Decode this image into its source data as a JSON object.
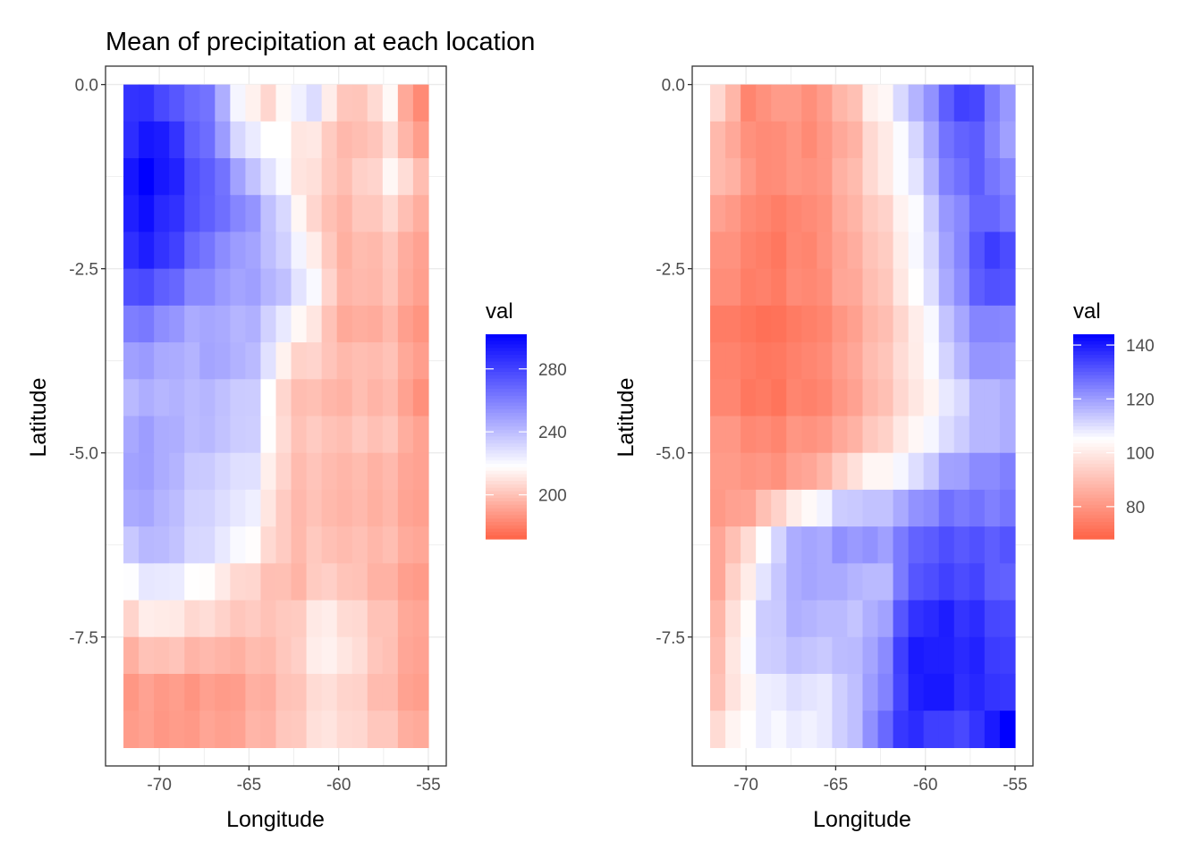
{
  "chart_data": [
    {
      "type": "heatmap",
      "title": "Mean of precipitation at each location",
      "xlabel": "Longitude",
      "ylabel": "Latitude",
      "x_ticks": [
        -70,
        -65,
        -60,
        -55
      ],
      "x_tick_labels": [
        "-70",
        "-65",
        "-60",
        "-55"
      ],
      "y_ticks": [
        0.0,
        -2.5,
        -5.0,
        -7.5
      ],
      "y_tick_labels": [
        "0.0",
        "-2.5",
        "-5.0",
        "-7.5"
      ],
      "xlim": [
        -73.0,
        -54.0
      ],
      "ylim": [
        -9.25,
        0.25
      ],
      "grid": true,
      "legend": {
        "title": "val",
        "placement": "right",
        "min": 172,
        "max": 302,
        "mid": 218,
        "ticks": [
          200,
          240,
          280
        ],
        "tick_labels": [
          "200",
          "240",
          "280"
        ],
        "colors": {
          "low": "#ff6347",
          "mid": "#ffffff",
          "high": "#0000ff"
        }
      },
      "cells": {
        "x_start": -72.0,
        "x_end": -55.0,
        "cols": 20,
        "y_start": 0.0,
        "y_end": -9.0,
        "rows": 18,
        "col_pattern": [
          -0.2,
          0.3,
          -0.1,
          0.1,
          -0.3,
          0.2,
          0.0,
          -0.2,
          0.3,
          -0.1,
          0.2,
          -0.3,
          0.1,
          0.0,
          -0.2,
          0.3,
          -0.1,
          0.2,
          -0.3,
          0.1
        ],
        "row_pattern": [
          0.1,
          -0.2,
          0.3,
          -0.1,
          0.0,
          0.2,
          -0.3,
          0.1,
          -0.2,
          0.3,
          0.0,
          -0.1,
          0.2,
          -0.3,
          0.1,
          0.0,
          -0.2,
          0.3
        ],
        "noise_amp": 7,
        "values": [
          [
            286,
            283,
            278,
            272,
            268,
            262,
            244,
            222,
            211,
            206,
            214,
            224,
            228,
            212,
            202,
            198,
            207,
            214,
            194,
            182
          ],
          [
            290,
            294,
            295,
            286,
            274,
            266,
            252,
            234,
            224,
            220,
            218,
            214,
            212,
            204,
            200,
            198,
            203,
            208,
            200,
            190
          ],
          [
            294,
            298,
            293,
            288,
            276,
            268,
            262,
            248,
            234,
            226,
            216,
            210,
            206,
            200,
            198,
            200,
            204,
            212,
            208,
            196
          ],
          [
            294,
            296,
            290,
            286,
            278,
            270,
            266,
            260,
            252,
            240,
            230,
            218,
            206,
            200,
            198,
            200,
            203,
            206,
            202,
            194
          ],
          [
            288,
            290,
            286,
            280,
            270,
            262,
            256,
            252,
            246,
            240,
            232,
            224,
            212,
            202,
            196,
            196,
            198,
            200,
            196,
            190
          ],
          [
            276,
            274,
            270,
            266,
            258,
            254,
            250,
            248,
            246,
            242,
            236,
            228,
            218,
            204,
            196,
            194,
            196,
            198,
            194,
            188
          ],
          [
            264,
            262,
            258,
            254,
            250,
            248,
            248,
            246,
            244,
            236,
            226,
            220,
            212,
            202,
            196,
            194,
            196,
            198,
            194,
            188
          ],
          [
            250,
            248,
            246,
            244,
            244,
            246,
            246,
            244,
            238,
            228,
            212,
            206,
            204,
            200,
            198,
            196,
            198,
            198,
            194,
            188
          ],
          [
            244,
            244,
            244,
            244,
            244,
            242,
            240,
            238,
            234,
            220,
            206,
            202,
            200,
            198,
            198,
            198,
            198,
            198,
            194,
            186
          ],
          [
            246,
            246,
            244,
            242,
            240,
            238,
            236,
            234,
            230,
            216,
            204,
            200,
            200,
            198,
            198,
            198,
            198,
            198,
            194,
            188
          ],
          [
            250,
            248,
            246,
            242,
            238,
            234,
            232,
            230,
            226,
            214,
            204,
            200,
            200,
            198,
            198,
            196,
            196,
            196,
            194,
            190
          ],
          [
            248,
            246,
            244,
            240,
            236,
            232,
            230,
            228,
            222,
            212,
            202,
            200,
            200,
            198,
            198,
            196,
            196,
            196,
            194,
            190
          ],
          [
            236,
            238,
            240,
            236,
            232,
            228,
            224,
            220,
            214,
            206,
            200,
            198,
            200,
            198,
            198,
            196,
            196,
            196,
            194,
            190
          ],
          [
            222,
            226,
            228,
            226,
            222,
            218,
            214,
            210,
            206,
            202,
            200,
            200,
            204,
            206,
            204,
            200,
            198,
            196,
            194,
            190
          ],
          [
            206,
            210,
            212,
            210,
            208,
            206,
            204,
            202,
            200,
            200,
            200,
            204,
            210,
            212,
            208,
            204,
            200,
            198,
            194,
            190
          ],
          [
            196,
            198,
            200,
            200,
            198,
            196,
            196,
            196,
            196,
            198,
            200,
            206,
            212,
            214,
            212,
            206,
            202,
            198,
            194,
            190
          ],
          [
            190,
            190,
            190,
            190,
            190,
            190,
            190,
            192,
            194,
            196,
            200,
            204,
            208,
            210,
            208,
            204,
            200,
            198,
            194,
            190
          ],
          [
            188,
            186,
            186,
            186,
            188,
            188,
            188,
            190,
            192,
            194,
            198,
            202,
            206,
            208,
            206,
            202,
            200,
            198,
            194,
            190
          ]
        ]
      }
    },
    {
      "type": "heatmap",
      "xlabel": "Longitude",
      "ylabel": "Latitude",
      "x_ticks": [
        -70,
        -65,
        -60,
        -55
      ],
      "x_tick_labels": [
        "-70",
        "-65",
        "-60",
        "-55"
      ],
      "y_ticks": [
        0.0,
        -2.5,
        -5.0,
        -7.5
      ],
      "y_tick_labels": [
        "0.0",
        "-2.5",
        "-5.0",
        "-7.5"
      ],
      "xlim": [
        -73.0,
        -54.0
      ],
      "ylim": [
        -9.25,
        0.25
      ],
      "grid": true,
      "legend": {
        "title": "val",
        "placement": "right",
        "min": 68,
        "max": 144,
        "mid": 105,
        "ticks": [
          80,
          100,
          120,
          140
        ],
        "tick_labels": [
          "80",
          "100",
          "120",
          "140"
        ],
        "colors": {
          "low": "#ff6347",
          "mid": "#ffffff",
          "high": "#0000ff"
        }
      },
      "cells": {
        "x_start": -72.0,
        "x_end": -55.0,
        "cols": 20,
        "y_start": 0.0,
        "y_end": -9.0,
        "rows": 18,
        "col_pattern": [
          -0.2,
          0.3,
          -0.1,
          0.1,
          -0.3,
          0.2,
          0.0,
          -0.2,
          0.3,
          -0.1,
          0.2,
          -0.3,
          0.1,
          0.0,
          -0.2,
          0.3,
          -0.1,
          0.2,
          -0.3,
          0.1
        ],
        "row_pattern": [
          0.1,
          -0.2,
          0.3,
          -0.1,
          0.0,
          0.2,
          -0.3,
          0.1,
          -0.2,
          0.3,
          0.0,
          -0.1,
          0.2,
          -0.3,
          0.1,
          0.0,
          -0.2,
          0.3
        ],
        "noise_amp": 4,
        "values": [
          [
            96,
            86,
            76,
            78,
            82,
            80,
            78,
            82,
            86,
            90,
            100,
            104,
            110,
            116,
            122,
            128,
            134,
            132,
            126,
            120
          ],
          [
            90,
            84,
            80,
            78,
            80,
            80,
            78,
            82,
            84,
            88,
            96,
            102,
            106,
            112,
            120,
            126,
            130,
            130,
            126,
            120
          ],
          [
            88,
            84,
            80,
            76,
            78,
            78,
            78,
            80,
            84,
            88,
            94,
            100,
            104,
            108,
            116,
            122,
            126,
            128,
            126,
            122
          ],
          [
            84,
            80,
            78,
            76,
            76,
            76,
            78,
            80,
            84,
            88,
            92,
            96,
            102,
            106,
            114,
            120,
            124,
            128,
            130,
            126
          ],
          [
            80,
            78,
            76,
            74,
            74,
            76,
            76,
            80,
            82,
            86,
            90,
            94,
            100,
            106,
            112,
            118,
            124,
            130,
            136,
            132
          ],
          [
            78,
            76,
            74,
            74,
            74,
            76,
            76,
            78,
            82,
            84,
            88,
            92,
            98,
            104,
            110,
            116,
            122,
            128,
            132,
            130
          ],
          [
            76,
            74,
            74,
            72,
            74,
            74,
            76,
            78,
            80,
            84,
            88,
            92,
            96,
            102,
            108,
            114,
            120,
            124,
            126,
            124
          ],
          [
            76,
            74,
            74,
            72,
            74,
            74,
            76,
            78,
            80,
            84,
            88,
            92,
            96,
            100,
            106,
            110,
            116,
            120,
            122,
            120
          ],
          [
            78,
            76,
            74,
            74,
            74,
            76,
            76,
            78,
            80,
            84,
            88,
            92,
            96,
            100,
            104,
            108,
            112,
            116,
            118,
            118
          ],
          [
            80,
            78,
            76,
            76,
            76,
            78,
            78,
            80,
            82,
            86,
            90,
            94,
            98,
            102,
            106,
            108,
            112,
            114,
            116,
            116
          ],
          [
            82,
            80,
            80,
            80,
            80,
            82,
            84,
            88,
            92,
            98,
            102,
            104,
            106,
            110,
            114,
            118,
            120,
            122,
            124,
            124
          ],
          [
            82,
            82,
            84,
            90,
            96,
            100,
            104,
            108,
            112,
            114,
            114,
            116,
            118,
            122,
            124,
            126,
            126,
            126,
            126,
            126
          ],
          [
            84,
            88,
            96,
            104,
            112,
            116,
            118,
            118,
            120,
            120,
            120,
            120,
            124,
            128,
            130,
            130,
            130,
            130,
            130,
            130
          ],
          [
            86,
            94,
            102,
            110,
            116,
            118,
            120,
            120,
            118,
            118,
            116,
            118,
            126,
            132,
            134,
            134,
            134,
            134,
            132,
            130
          ],
          [
            88,
            96,
            104,
            112,
            114,
            116,
            116,
            116,
            114,
            114,
            116,
            120,
            130,
            136,
            138,
            138,
            136,
            136,
            134,
            132
          ],
          [
            90,
            98,
            106,
            112,
            114,
            114,
            114,
            114,
            114,
            116,
            118,
            124,
            134,
            140,
            140,
            138,
            138,
            138,
            136,
            134
          ],
          [
            92,
            98,
            104,
            108,
            110,
            110,
            110,
            110,
            112,
            116,
            120,
            126,
            134,
            140,
            142,
            140,
            138,
            138,
            138,
            136
          ],
          [
            96,
            100,
            104,
            106,
            106,
            106,
            106,
            108,
            110,
            114,
            120,
            128,
            134,
            136,
            134,
            132,
            132,
            134,
            140,
            144
          ]
        ]
      }
    }
  ]
}
